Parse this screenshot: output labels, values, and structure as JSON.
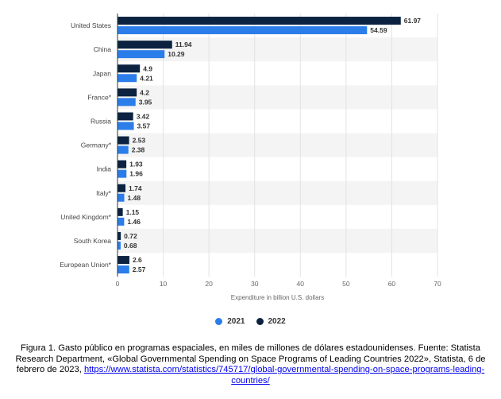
{
  "chart_data": {
    "type": "bar",
    "orientation": "horizontal",
    "categories": [
      "United States",
      "China",
      "Japan",
      "France*",
      "Russia",
      "Germany*",
      "India",
      "Italy*",
      "United Kingdom*",
      "South Korea",
      "European Union*"
    ],
    "series": [
      {
        "name": "2022",
        "color": "#0b2241",
        "values": [
          61.97,
          11.94,
          4.9,
          4.2,
          3.42,
          2.53,
          1.93,
          1.74,
          1.15,
          0.72,
          2.6
        ],
        "labels": [
          "61.97",
          "11.94",
          "4.9",
          "4.2",
          "3.42",
          "2.53",
          "1.93",
          "1.74",
          "1.15",
          "0.72",
          "2.6"
        ]
      },
      {
        "name": "2021",
        "color": "#2b7de9",
        "values": [
          54.59,
          10.29,
          4.21,
          3.95,
          3.57,
          2.38,
          1.96,
          1.48,
          1.46,
          0.68,
          2.57
        ],
        "labels": [
          "54.59",
          "10.29",
          "4.21",
          "3.95",
          "3.57",
          "2.38",
          "1.96",
          "1.48",
          "1.46",
          "0.68",
          "2.57"
        ]
      }
    ],
    "xlabel": "Expenditure in billion U.S. dollars",
    "xlim": [
      0,
      70
    ],
    "xticks": [
      0,
      10,
      20,
      30,
      40,
      50,
      60,
      70
    ],
    "xtick_labels": [
      "0",
      "10",
      "20",
      "30",
      "40",
      "50",
      "60",
      "70"
    ],
    "grid": true,
    "legend": {
      "placement": "bottom",
      "order": [
        "2021",
        "2022"
      ]
    }
  },
  "caption": {
    "text": "Figura 1. Gasto público en programas espaciales, en miles de millones de dólares estadounidenses. Fuente: Statista Research Department, «Global Governmental Spending on Space Programs of Leading Countries 2022», Statista, 6 de febrero de 2023, ",
    "link": "https://www.statista.com/statistics/745717/global-governmental-spending-on-space-programs-leading-countries/"
  }
}
